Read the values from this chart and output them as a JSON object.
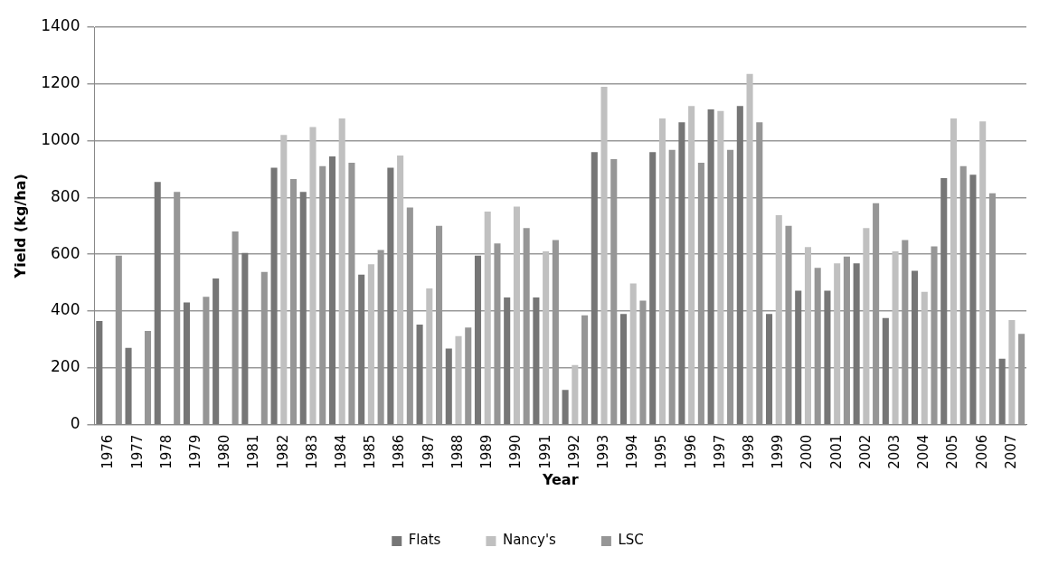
{
  "chart_data": {
    "type": "bar",
    "xlabel": "Year",
    "ylabel": "Yield (kg/ha)",
    "categories": [
      "1976",
      "1977",
      "1978",
      "1979",
      "1980",
      "1981",
      "1982",
      "1983",
      "1984",
      "1985",
      "1986",
      "1987",
      "1988",
      "1989",
      "1990",
      "1991",
      "1992",
      "1993",
      "1994",
      "1995",
      "1996",
      "1997",
      "1998",
      "1999",
      "2000",
      "2001",
      "2002",
      "2003",
      "2004",
      "2005",
      "2006",
      "2007"
    ],
    "series": [
      {
        "name": "Flats",
        "color": "#767676",
        "values": [
          365,
          270,
          855,
          430,
          515,
          605,
          905,
          820,
          945,
          528,
          905,
          352,
          268,
          595,
          448,
          448,
          122,
          960,
          390,
          960,
          1065,
          1110,
          1122,
          390,
          472,
          472,
          568,
          375,
          542,
          868,
          880,
          232
        ]
      },
      {
        "name": "Nancy's",
        "color": "#c0c0c0",
        "values": [
          null,
          null,
          null,
          null,
          null,
          null,
          1020,
          1048,
          1078,
          565,
          948,
          480,
          312,
          750,
          768,
          610,
          210,
          1190,
          497,
          1078,
          1122,
          1105,
          1235,
          738,
          625,
          568,
          692,
          610,
          468,
          1078,
          1068,
          368
        ]
      },
      {
        "name": "LSC",
        "color": "#969696",
        "values": [
          595,
          330,
          820,
          450,
          680,
          538,
          865,
          910,
          922,
          615,
          765,
          700,
          342,
          638,
          692,
          650,
          385,
          935,
          437,
          968,
          922,
          968,
          1065,
          700,
          552,
          592,
          780,
          650,
          628,
          910,
          815,
          320
        ]
      }
    ],
    "ylim": [
      0,
      1400
    ],
    "yticks": [
      0,
      200,
      400,
      600,
      800,
      1000,
      1200,
      1400
    ],
    "grid": "y",
    "legend": "bottom"
  }
}
